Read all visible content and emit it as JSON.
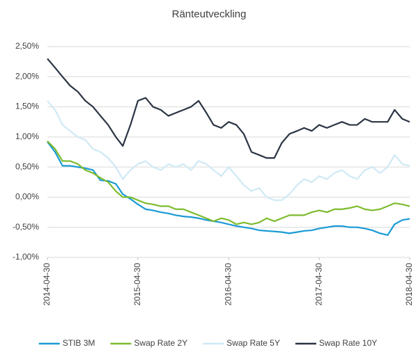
{
  "chart_data": {
    "type": "line",
    "title": "Ränteutveckling",
    "x": [
      "2014-04-30",
      "2014-05-31",
      "2014-06-30",
      "2014-07-31",
      "2014-08-31",
      "2014-09-30",
      "2014-10-31",
      "2014-11-30",
      "2014-12-31",
      "2015-01-31",
      "2015-02-28",
      "2015-03-31",
      "2015-04-30",
      "2015-05-31",
      "2015-06-30",
      "2015-07-31",
      "2015-08-31",
      "2015-09-30",
      "2015-10-31",
      "2015-11-30",
      "2015-12-31",
      "2016-01-31",
      "2016-02-29",
      "2016-03-31",
      "2016-04-30",
      "2016-05-31",
      "2016-06-30",
      "2016-07-31",
      "2016-08-31",
      "2016-09-30",
      "2016-10-31",
      "2016-11-30",
      "2016-12-31",
      "2017-01-31",
      "2017-02-28",
      "2017-03-31",
      "2017-04-30",
      "2017-05-31",
      "2017-06-30",
      "2017-07-31",
      "2017-08-31",
      "2017-09-30",
      "2017-10-31",
      "2017-11-30",
      "2017-12-31",
      "2018-01-31",
      "2018-02-28",
      "2018-03-31",
      "2018-04-30"
    ],
    "series": [
      {
        "name": "STIB 3M",
        "color": "#1a9ad6",
        "values": [
          0.92,
          0.75,
          0.52,
          0.52,
          0.5,
          0.48,
          0.45,
          0.28,
          0.27,
          0.22,
          0.05,
          -0.03,
          -0.12,
          -0.2,
          -0.22,
          -0.25,
          -0.27,
          -0.3,
          -0.32,
          -0.33,
          -0.35,
          -0.38,
          -0.4,
          -0.42,
          -0.45,
          -0.48,
          -0.5,
          -0.52,
          -0.55,
          -0.56,
          -0.57,
          -0.58,
          -0.6,
          -0.58,
          -0.56,
          -0.55,
          -0.52,
          -0.5,
          -0.48,
          -0.48,
          -0.5,
          -0.5,
          -0.52,
          -0.55,
          -0.6,
          -0.63,
          -0.45,
          -0.38,
          -0.36
        ]
      },
      {
        "name": "Swap Rate 2Y",
        "color": "#7dbb2e",
        "values": [
          0.93,
          0.8,
          0.6,
          0.6,
          0.55,
          0.45,
          0.4,
          0.32,
          0.25,
          0.1,
          0.0,
          0.0,
          -0.05,
          -0.1,
          -0.12,
          -0.15,
          -0.15,
          -0.2,
          -0.2,
          -0.25,
          -0.3,
          -0.35,
          -0.4,
          -0.35,
          -0.38,
          -0.45,
          -0.42,
          -0.45,
          -0.42,
          -0.35,
          -0.4,
          -0.35,
          -0.3,
          -0.3,
          -0.3,
          -0.25,
          -0.22,
          -0.25,
          -0.2,
          -0.2,
          -0.18,
          -0.15,
          -0.2,
          -0.22,
          -0.2,
          -0.15,
          -0.1,
          -0.12,
          -0.15
        ]
      },
      {
        "name": "Swap Rate 5Y",
        "color": "#cfe9f5",
        "values": [
          1.6,
          1.45,
          1.2,
          1.1,
          1.0,
          0.95,
          0.8,
          0.75,
          0.65,
          0.5,
          0.3,
          0.45,
          0.55,
          0.6,
          0.5,
          0.45,
          0.55,
          0.5,
          0.55,
          0.45,
          0.6,
          0.55,
          0.45,
          0.35,
          0.5,
          0.35,
          0.2,
          0.1,
          0.15,
          0.0,
          -0.05,
          -0.05,
          0.05,
          0.2,
          0.3,
          0.25,
          0.35,
          0.3,
          0.4,
          0.45,
          0.35,
          0.3,
          0.45,
          0.5,
          0.4,
          0.5,
          0.7,
          0.55,
          0.52
        ]
      },
      {
        "name": "Swap Rate 10Y",
        "color": "#2a3443",
        "values": [
          2.3,
          2.15,
          2.0,
          1.85,
          1.75,
          1.6,
          1.5,
          1.35,
          1.2,
          1.0,
          0.85,
          1.2,
          1.6,
          1.65,
          1.5,
          1.45,
          1.35,
          1.4,
          1.45,
          1.5,
          1.6,
          1.4,
          1.2,
          1.15,
          1.25,
          1.2,
          1.05,
          0.75,
          0.7,
          0.65,
          0.65,
          0.9,
          1.05,
          1.1,
          1.15,
          1.1,
          1.2,
          1.15,
          1.2,
          1.25,
          1.2,
          1.2,
          1.3,
          1.25,
          1.25,
          1.25,
          1.45,
          1.3,
          1.25
        ]
      }
    ],
    "xlim": [
      "2014-04-30",
      "2018-04-30"
    ],
    "xticks": [
      "2014-04-30",
      "2015-04-30",
      "2016-04-30",
      "2017-04-30",
      "2018-04-30"
    ],
    "ylim": [
      -1.0,
      2.5
    ],
    "yticks": [
      {
        "value": -1.0,
        "label": "-1,00%"
      },
      {
        "value": -0.5,
        "label": "-0,50%"
      },
      {
        "value": 0.0,
        "label": "0,00%"
      },
      {
        "value": 0.5,
        "label": "0,50%"
      },
      {
        "value": 1.0,
        "label": "1,00%"
      },
      {
        "value": 1.5,
        "label": "1,50%"
      },
      {
        "value": 2.0,
        "label": "2,00%"
      },
      {
        "value": 2.5,
        "label": "2,50%"
      }
    ],
    "grid": true,
    "legend": "bottom"
  }
}
